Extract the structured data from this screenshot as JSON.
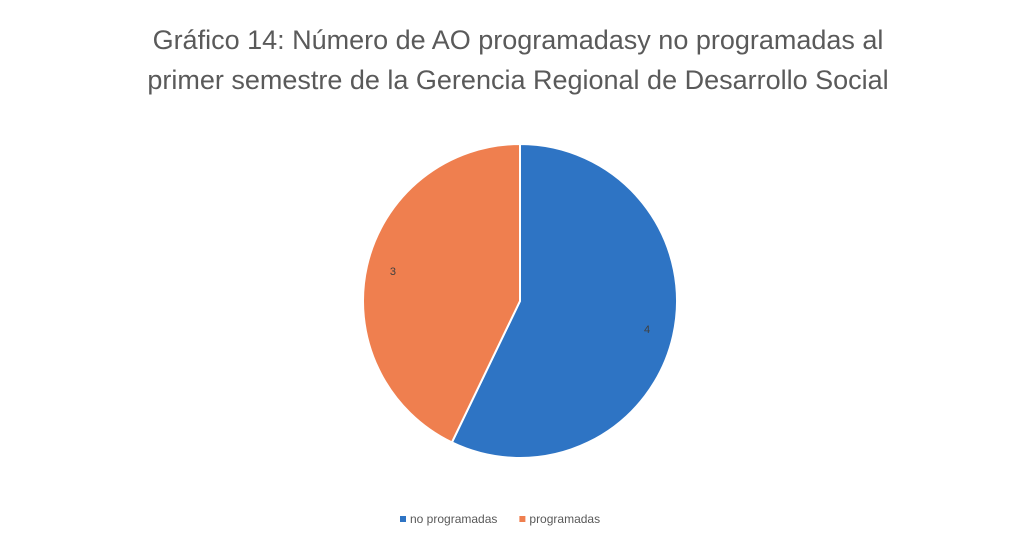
{
  "chart_data": {
    "type": "pie",
    "title": [
      "Gráfico 14: Número de AO programadasy no programadas al",
      "primer semestre de la Gerencia Regional de Desarrollo Social"
    ],
    "categories": [
      "no programadas",
      "programadas"
    ],
    "values": [
      4,
      3
    ],
    "colors": [
      "#2e74c4",
      "#ef7f4f"
    ],
    "legend": "bottom"
  }
}
